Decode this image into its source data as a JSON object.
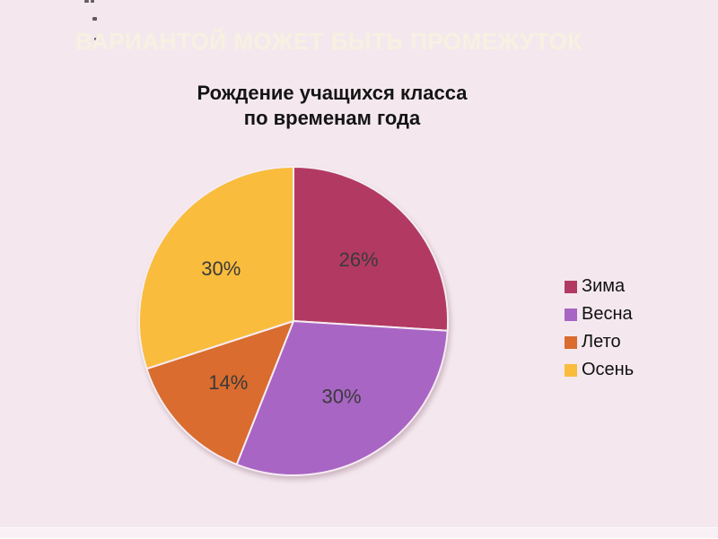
{
  "slide": {
    "heading": "ВАРИАНТОЙ МОЖЕТ БЫТЬ ПРОМЕЖУТОК",
    "heading_color": "#f8f0e1",
    "background_color": "#f4e8ee"
  },
  "chart_data": {
    "type": "pie",
    "title": "Рождение учащихся класса по временам года",
    "title_lines": [
      "Рождение учащихся класса",
      "по временам года"
    ],
    "categories": [
      "Зима",
      "Весна",
      "Лето",
      "Осень"
    ],
    "values": [
      26,
      30,
      14,
      30
    ],
    "unit": "%",
    "data_labels": [
      "26%",
      "30%",
      "14%",
      "30%"
    ],
    "colors": [
      "#b23a62",
      "#a865c4",
      "#d96c2e",
      "#f9bc3d"
    ],
    "label_color": "#3a3a3a",
    "start_angle_deg": 0,
    "direction": "clockwise",
    "legend_position": "right"
  }
}
